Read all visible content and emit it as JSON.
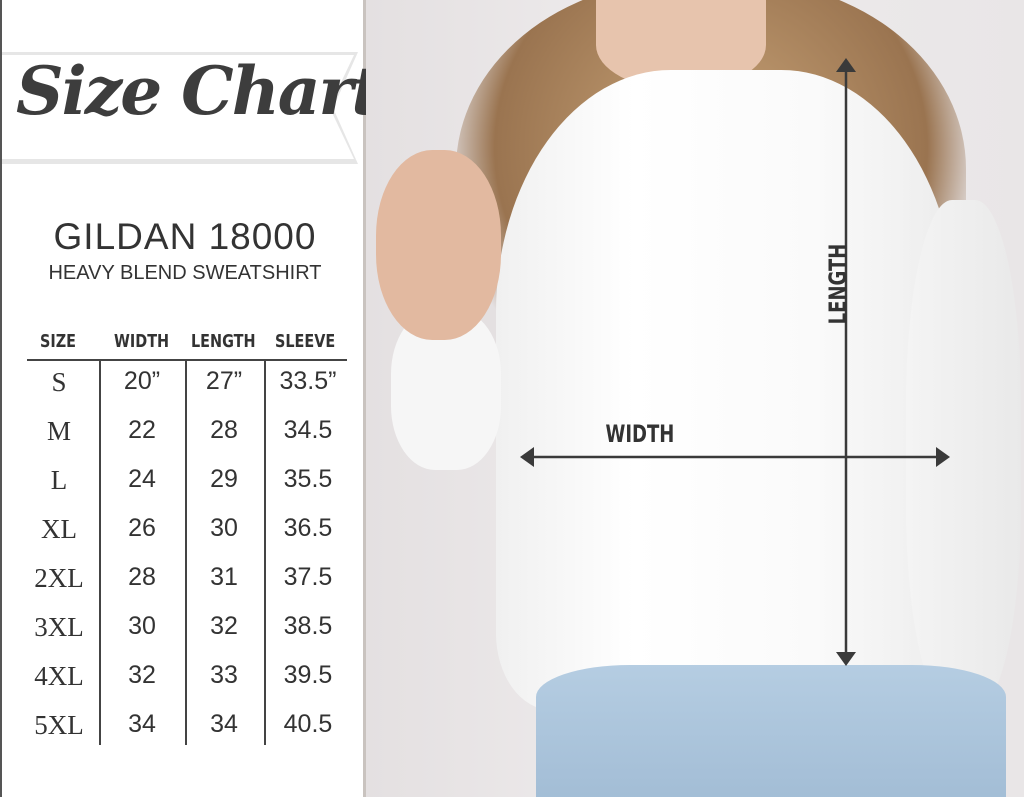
{
  "title": "Size Chart",
  "brand": "GILDAN 18000",
  "subtitle": "HEAVY BLEND SWEATSHIRT",
  "table": {
    "headers": [
      "SIZE",
      "WIDTH",
      "LENGTH",
      "SLEEVE"
    ],
    "rows": [
      [
        "S",
        "20”",
        "27”",
        "33.5”"
      ],
      [
        "M",
        "22",
        "28",
        "34.5"
      ],
      [
        "L",
        "24",
        "29",
        "35.5"
      ],
      [
        "XL",
        "26",
        "30",
        "36.5"
      ],
      [
        "2XL",
        "28",
        "31",
        "37.5"
      ],
      [
        "3XL",
        "30",
        "32",
        "38.5"
      ],
      [
        "4XL",
        "32",
        "33",
        "39.5"
      ],
      [
        "5XL",
        "34",
        "34",
        "40.5"
      ]
    ]
  },
  "photo": {
    "width_label": "WIDTH",
    "length_label": "LENGTH"
  },
  "colors": {
    "text": "#333333",
    "arrow": "#3a3a3a",
    "sweatshirt": "#ffffff",
    "jeans": "#a9c4dc"
  }
}
